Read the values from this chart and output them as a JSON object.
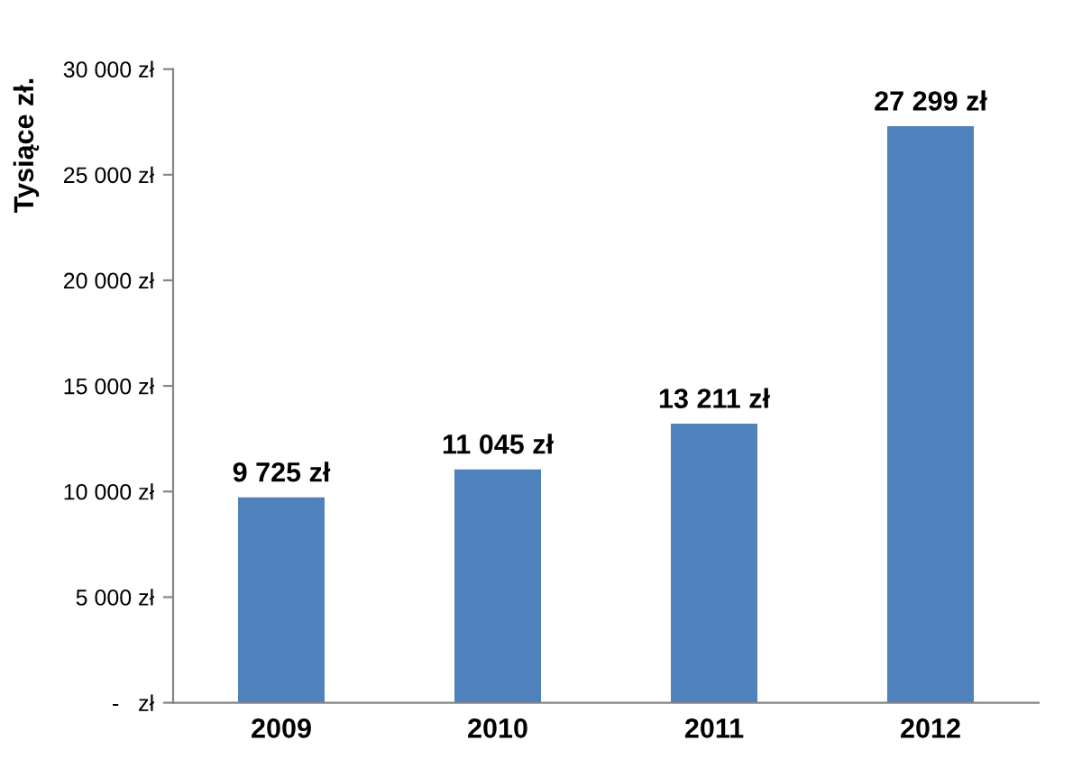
{
  "chart_data": {
    "type": "bar",
    "ylabel": "Tysiące zł.",
    "categories": [
      "2009",
      "2010",
      "2011",
      "2012"
    ],
    "values": [
      9725,
      11045,
      13211,
      27299
    ],
    "value_labels": [
      "9 725 zł",
      "11 045 zł",
      "13 211 zł",
      "27 299 zł"
    ],
    "color": "#4f81bd",
    "ylim": [
      0,
      30000
    ],
    "yticks": [
      {
        "value": 0,
        "label": "-   zł"
      },
      {
        "value": 5000,
        "label": "5 000 zł"
      },
      {
        "value": 10000,
        "label": "10 000 zł"
      },
      {
        "value": 15000,
        "label": "15 000 zł"
      },
      {
        "value": 20000,
        "label": "20 000 zł"
      },
      {
        "value": 25000,
        "label": "25 000 zł"
      },
      {
        "value": 30000,
        "label": "30 000 zł"
      }
    ],
    "grid": false,
    "legend": false
  }
}
